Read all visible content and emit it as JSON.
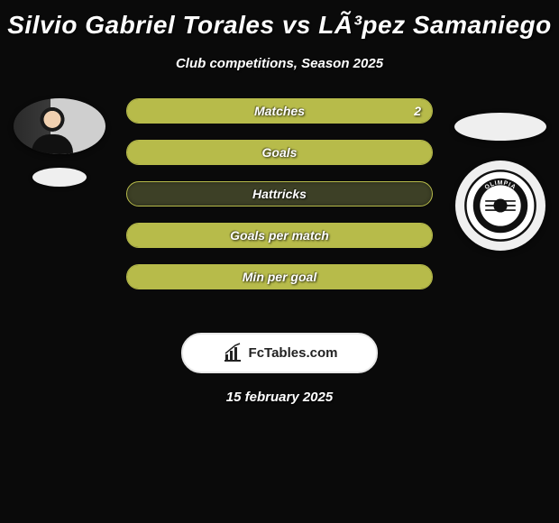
{
  "title": "Silvio Gabriel Torales vs LÃ³pez Samaniego",
  "subtitle": "Club competitions, Season 2025",
  "date": "15 february 2025",
  "watermark": {
    "text": "FcTables.com"
  },
  "colors": {
    "bar_fill": "#b7bb4a",
    "bar_bg": "#3d4026",
    "bar_border": "#b7bb4a",
    "page_bg": "#0a0a0a",
    "text": "#ffffff"
  },
  "left": {
    "player_photo": "silvio-torales",
    "club_badge": "club-left"
  },
  "right": {
    "player_photo": "lopez-samaniego",
    "club_badge": "olimpia"
  },
  "rows": [
    {
      "label": "Matches",
      "left_value": "",
      "right_value": "2",
      "left_pct": 0,
      "full": true
    },
    {
      "label": "Goals",
      "left_value": "",
      "right_value": "",
      "left_pct": 0,
      "full": true
    },
    {
      "label": "Hattricks",
      "left_value": "",
      "right_value": "",
      "left_pct": 0,
      "full": false
    },
    {
      "label": "Goals per match",
      "left_value": "",
      "right_value": "",
      "left_pct": 0,
      "full": true
    },
    {
      "label": "Min per goal",
      "left_value": "",
      "right_value": "",
      "left_pct": 0,
      "full": true
    }
  ]
}
